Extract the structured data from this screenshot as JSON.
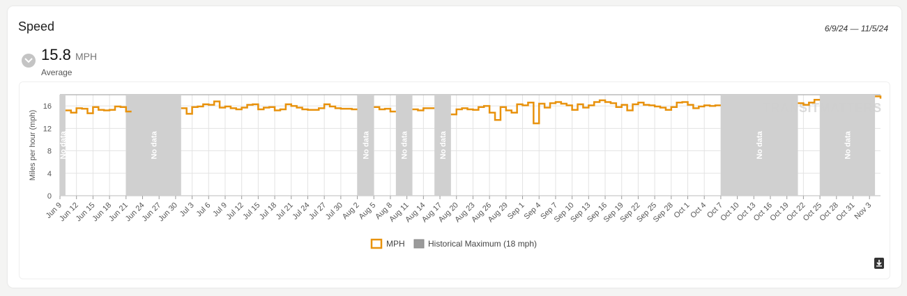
{
  "header": {
    "title": "Speed",
    "date_range": "6/9/24 — 11/5/24"
  },
  "summary": {
    "value": "15.8",
    "unit": "MPH",
    "label": "Average"
  },
  "icons": {
    "toggle": "chevron-down-icon",
    "download": "download-icon"
  },
  "watermark": "TRANSITMATTERS",
  "colors": {
    "line": "#e8920d",
    "gap": "#d0d0d0",
    "max": "#9a9a9a",
    "grid": "#e3e3e3"
  },
  "chart_data": {
    "type": "line",
    "x_type": "date",
    "ylabel": "Miles per hour (mph)",
    "ylim": [
      0,
      18
    ],
    "yticks": [
      0,
      4,
      8,
      12,
      16
    ],
    "xlim": [
      "2024-06-09",
      "2024-11-05"
    ],
    "xticks": [
      "Jun 9",
      "Jun 12",
      "Jun 15",
      "Jun 18",
      "Jun 21",
      "Jun 24",
      "Jun 27",
      "Jun 30",
      "Jul 3",
      "Jul 6",
      "Jul 9",
      "Jul 12",
      "Jul 15",
      "Jul 18",
      "Jul 21",
      "Jul 24",
      "Jul 27",
      "Jul 30",
      "Aug 2",
      "Aug 5",
      "Aug 8",
      "Aug 11",
      "Aug 14",
      "Aug 17",
      "Aug 20",
      "Aug 23",
      "Aug 26",
      "Aug 29",
      "Sep 1",
      "Sep 4",
      "Sep 7",
      "Sep 10",
      "Sep 13",
      "Sep 16",
      "Sep 19",
      "Sep 22",
      "Sep 25",
      "Sep 28",
      "Oct 1",
      "Oct 4",
      "Oct 7",
      "Oct 10",
      "Oct 13",
      "Oct 16",
      "Oct 19",
      "Oct 22",
      "Oct 25",
      "Oct 28",
      "Oct 31",
      "Nov 3"
    ],
    "historical_max": 18,
    "no_data_label": "No data",
    "no_data_ranges": [
      [
        "2024-06-09",
        "2024-06-10"
      ],
      [
        "2024-06-21",
        "2024-07-01"
      ],
      [
        "2024-08-02",
        "2024-08-05"
      ],
      [
        "2024-08-09",
        "2024-08-12"
      ],
      [
        "2024-08-16",
        "2024-08-19"
      ],
      [
        "2024-10-07",
        "2024-10-21"
      ],
      [
        "2024-10-25",
        "2024-11-04"
      ]
    ],
    "legend": [
      {
        "name": "MPH",
        "style": "line"
      },
      {
        "name": "Historical Maximum (18 mph)",
        "style": "fill"
      }
    ],
    "series": [
      {
        "name": "MPH",
        "points": [
          [
            "2024-06-10",
            15.2
          ],
          [
            "2024-06-11",
            14.8
          ],
          [
            "2024-06-12",
            15.6
          ],
          [
            "2024-06-13",
            15.5
          ],
          [
            "2024-06-14",
            14.7
          ],
          [
            "2024-06-15",
            15.8
          ],
          [
            "2024-06-16",
            15.3
          ],
          [
            "2024-06-17",
            15.2
          ],
          [
            "2024-06-18",
            15.3
          ],
          [
            "2024-06-19",
            15.9
          ],
          [
            "2024-06-20",
            15.8
          ],
          [
            "2024-06-21",
            15.0
          ],
          [
            "2024-07-01",
            15.6
          ],
          [
            "2024-07-02",
            14.6
          ],
          [
            "2024-07-03",
            15.8
          ],
          [
            "2024-07-04",
            15.9
          ],
          [
            "2024-07-05",
            16.3
          ],
          [
            "2024-07-06",
            16.2
          ],
          [
            "2024-07-07",
            16.8
          ],
          [
            "2024-07-08",
            15.7
          ],
          [
            "2024-07-09",
            15.9
          ],
          [
            "2024-07-10",
            15.6
          ],
          [
            "2024-07-11",
            15.4
          ],
          [
            "2024-07-12",
            15.7
          ],
          [
            "2024-07-13",
            16.2
          ],
          [
            "2024-07-14",
            16.3
          ],
          [
            "2024-07-15",
            15.4
          ],
          [
            "2024-07-16",
            15.7
          ],
          [
            "2024-07-17",
            15.8
          ],
          [
            "2024-07-18",
            15.2
          ],
          [
            "2024-07-19",
            15.4
          ],
          [
            "2024-07-20",
            16.3
          ],
          [
            "2024-07-21",
            16.0
          ],
          [
            "2024-07-22",
            15.7
          ],
          [
            "2024-07-23",
            15.4
          ],
          [
            "2024-07-24",
            15.3
          ],
          [
            "2024-07-25",
            15.3
          ],
          [
            "2024-07-26",
            15.6
          ],
          [
            "2024-07-27",
            16.3
          ],
          [
            "2024-07-28",
            15.9
          ],
          [
            "2024-07-29",
            15.6
          ],
          [
            "2024-07-30",
            15.5
          ],
          [
            "2024-07-31",
            15.5
          ],
          [
            "2024-08-01",
            15.4
          ],
          [
            "2024-08-05",
            15.8
          ],
          [
            "2024-08-06",
            15.4
          ],
          [
            "2024-08-07",
            15.5
          ],
          [
            "2024-08-08",
            15.0
          ],
          [
            "2024-08-12",
            15.4
          ],
          [
            "2024-08-13",
            15.2
          ],
          [
            "2024-08-14",
            15.6
          ],
          [
            "2024-08-15",
            15.6
          ],
          [
            "2024-08-19",
            14.5
          ],
          [
            "2024-08-20",
            15.4
          ],
          [
            "2024-08-21",
            15.6
          ],
          [
            "2024-08-22",
            15.4
          ],
          [
            "2024-08-23",
            15.3
          ],
          [
            "2024-08-24",
            15.8
          ],
          [
            "2024-08-25",
            16.0
          ],
          [
            "2024-08-26",
            14.8
          ],
          [
            "2024-08-27",
            13.5
          ],
          [
            "2024-08-28",
            15.8
          ],
          [
            "2024-08-29",
            15.2
          ],
          [
            "2024-08-30",
            14.8
          ],
          [
            "2024-08-31",
            16.3
          ],
          [
            "2024-09-01",
            16.1
          ],
          [
            "2024-09-02",
            16.6
          ],
          [
            "2024-09-03",
            12.9
          ],
          [
            "2024-09-04",
            16.4
          ],
          [
            "2024-09-05",
            15.7
          ],
          [
            "2024-09-06",
            16.5
          ],
          [
            "2024-09-07",
            16.7
          ],
          [
            "2024-09-08",
            16.4
          ],
          [
            "2024-09-09",
            16.1
          ],
          [
            "2024-09-10",
            15.3
          ],
          [
            "2024-09-11",
            16.3
          ],
          [
            "2024-09-12",
            15.7
          ],
          [
            "2024-09-13",
            16.1
          ],
          [
            "2024-09-14",
            16.7
          ],
          [
            "2024-09-15",
            17.0
          ],
          [
            "2024-09-16",
            16.7
          ],
          [
            "2024-09-17",
            16.5
          ],
          [
            "2024-09-18",
            15.8
          ],
          [
            "2024-09-19",
            16.2
          ],
          [
            "2024-09-20",
            15.2
          ],
          [
            "2024-09-21",
            16.3
          ],
          [
            "2024-09-22",
            16.6
          ],
          [
            "2024-09-23",
            16.2
          ],
          [
            "2024-09-24",
            16.1
          ],
          [
            "2024-09-25",
            15.9
          ],
          [
            "2024-09-26",
            15.7
          ],
          [
            "2024-09-27",
            15.3
          ],
          [
            "2024-09-28",
            15.8
          ],
          [
            "2024-09-29",
            16.6
          ],
          [
            "2024-09-30",
            16.7
          ],
          [
            "2024-10-01",
            16.2
          ],
          [
            "2024-10-02",
            15.6
          ],
          [
            "2024-10-03",
            15.9
          ],
          [
            "2024-10-04",
            16.1
          ],
          [
            "2024-10-05",
            16.0
          ],
          [
            "2024-10-06",
            16.1
          ],
          [
            "2024-10-21",
            16.5
          ],
          [
            "2024-10-22",
            16.2
          ],
          [
            "2024-10-23",
            16.6
          ],
          [
            "2024-10-24",
            17.1
          ],
          [
            "2024-11-04",
            17.7
          ],
          [
            "2024-11-05",
            17.3
          ]
        ]
      }
    ]
  }
}
